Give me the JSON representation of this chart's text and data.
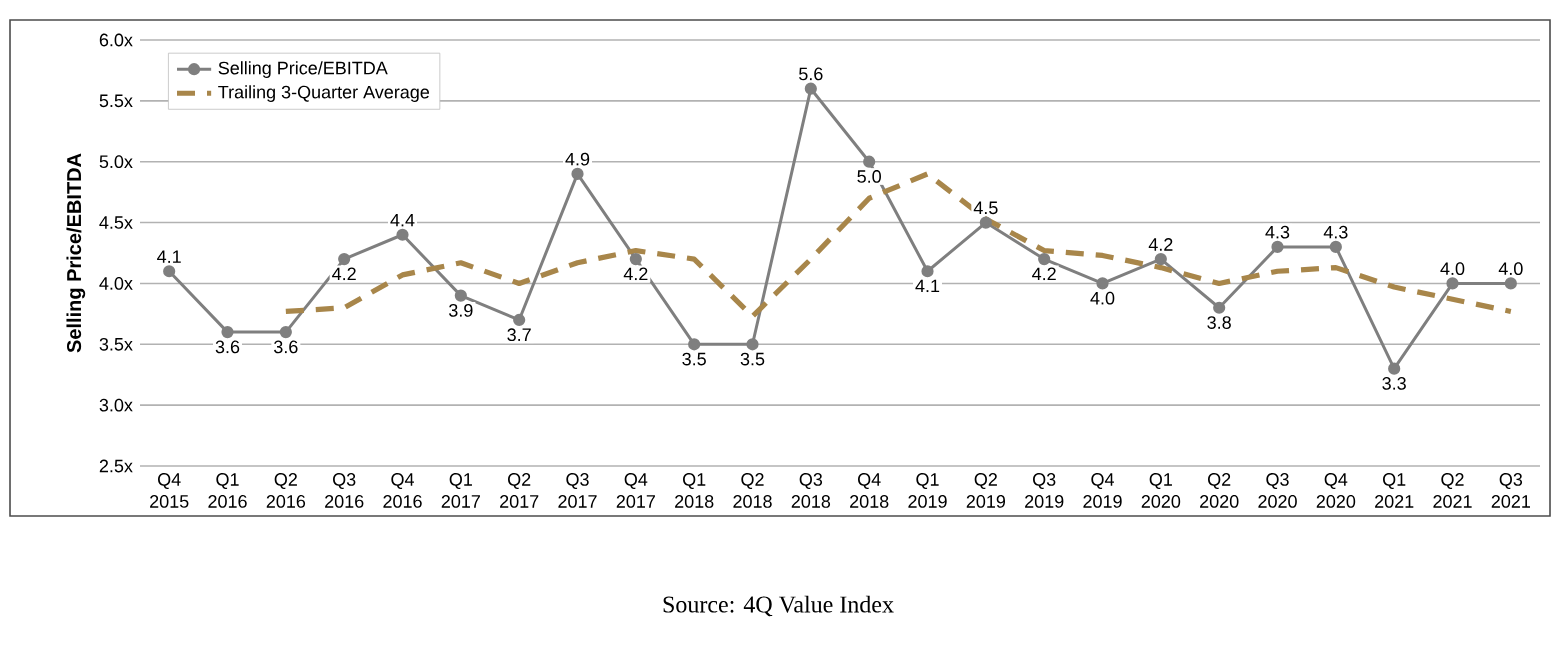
{
  "chart_data": {
    "type": "line",
    "ylabel": "Selling Price/EBITDA",
    "categories": [
      "Q4 2015",
      "Q1 2016",
      "Q2 2016",
      "Q3 2016",
      "Q4 2016",
      "Q1 2017",
      "Q2 2017",
      "Q3 2017",
      "Q4 2017",
      "Q1 2018",
      "Q2 2018",
      "Q3 2018",
      "Q4 2018",
      "Q1 2019",
      "Q2 2019",
      "Q3 2019",
      "Q4 2019",
      "Q1 2020",
      "Q2 2020",
      "Q3 2020",
      "Q4 2020",
      "Q1 2021",
      "Q2 2021",
      "Q3 2021"
    ],
    "series": [
      {
        "name": "Selling Price/EBITDA",
        "color": "#7f7f7f",
        "marker": "circle",
        "line_style": "solid",
        "values": [
          4.1,
          3.6,
          3.6,
          4.2,
          4.4,
          3.9,
          3.7,
          4.9,
          4.2,
          3.5,
          3.5,
          5.6,
          5.0,
          4.1,
          4.5,
          4.2,
          4.0,
          4.2,
          3.8,
          4.3,
          4.3,
          3.3,
          4.0,
          4.0
        ],
        "value_labels": [
          "4.1",
          "3.6",
          "3.6",
          "4.2",
          "4.4",
          "3.9",
          "3.7",
          "4.9",
          "4.2",
          "3.5",
          "3.5",
          "5.6",
          "5.0",
          "4.1",
          "4.5",
          "4.2",
          "4.0",
          "4.2",
          "3.8",
          "4.3",
          "4.3",
          "3.3",
          "4.0",
          "4.0"
        ]
      },
      {
        "name": "Trailing 3-Quarter Average",
        "color": "#a8864a",
        "marker": "none",
        "line_style": "dashed",
        "values": [
          null,
          null,
          3.77,
          3.8,
          4.07,
          4.17,
          4.0,
          4.17,
          4.27,
          4.2,
          3.73,
          4.2,
          4.7,
          4.9,
          4.53,
          4.27,
          4.23,
          4.13,
          4.0,
          4.1,
          4.13,
          3.97,
          3.87,
          3.77
        ]
      }
    ],
    "ylim": [
      2.5,
      6.0
    ],
    "yticks": [
      {
        "value": 2.5,
        "label": "2.5x"
      },
      {
        "value": 3.0,
        "label": "3.0x"
      },
      {
        "value": 3.5,
        "label": "3.5x"
      },
      {
        "value": 4.0,
        "label": "4.0x"
      },
      {
        "value": 4.5,
        "label": "4.5x"
      },
      {
        "value": 5.0,
        "label": "5.0x"
      },
      {
        "value": 5.5,
        "label": "5.5x"
      },
      {
        "value": 6.0,
        "label": "6.0x"
      }
    ],
    "grid": "y",
    "legend": "top left",
    "annotations": [
      "Source: 4Q Value Index"
    ]
  }
}
